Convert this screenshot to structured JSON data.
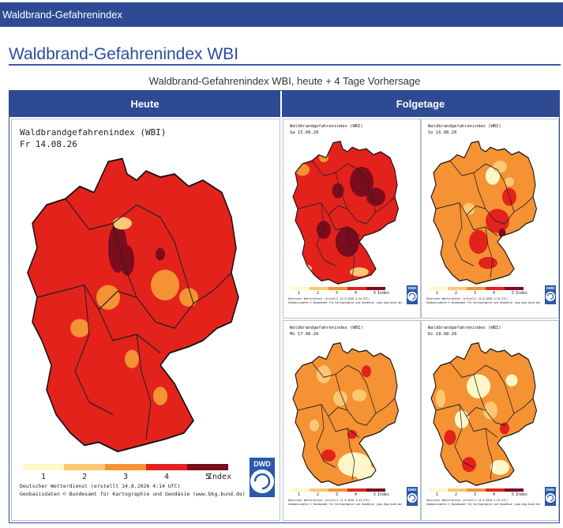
{
  "header": {
    "title": "Waldbrand-Gefahrenindex"
  },
  "page": {
    "heading": "Waldbrand-Gefahrenindex WBI",
    "subtitle": "Waldbrand-Gefahrenindex WBI, heute + 4 Tage Vorhersage"
  },
  "table": {
    "col_today": "Heute",
    "col_next": "Folgetage"
  },
  "colors": {
    "l1": "#fff7c8",
    "l2": "#fdc774",
    "l3": "#f59234",
    "l4": "#e3221c",
    "l5": "#7a0c1e",
    "accent": "#2d4a93",
    "dwd_blue": "#2a5aa8"
  },
  "legend": {
    "levels": [
      "1",
      "2",
      "3",
      "4",
      "5"
    ],
    "unit": "Index"
  },
  "credit": {
    "line1": "Deutscher Wetterdienst (erstellt 14.8.2026 4:14 UTC)",
    "line2": "Geobasisdaten © Bundesamt für Kartographie und Geodäsie (www.bkg.bund.de)"
  },
  "dwd_logo": "DWD",
  "maps": [
    {
      "title": "Waldbrandgefahrenindex (WBI)",
      "date": "Fr 14.08.26",
      "base": "l4",
      "dominant_level": 4
    },
    {
      "title": "Waldbrandgefahrenindex (WBI)",
      "date": "Sa 15.08.26",
      "base": "l4",
      "dominant_level": 4
    },
    {
      "title": "Waldbrandgefahrenindex (WBI)",
      "date": "So 16.08.26",
      "base": "l3",
      "dominant_level": 3
    },
    {
      "title": "Waldbrandgefahrenindex (WBI)",
      "date": "Mo 17.08.26",
      "base": "l3",
      "dominant_level": 3
    },
    {
      "title": "Waldbrandgefahrenindex (WBI)",
      "date": "Di 18.08.26",
      "base": "l3",
      "dominant_level": 3
    }
  ]
}
